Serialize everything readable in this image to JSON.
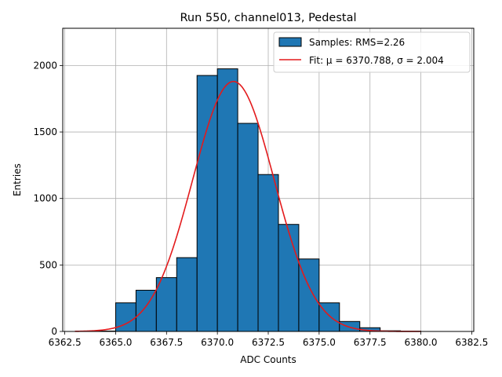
{
  "chart_data": {
    "type": "bar",
    "title": "Run 550, channel013, Pedestal",
    "xlabel": "ADC Counts",
    "ylabel": "Entries",
    "xlim": [
      6362.4,
      6382.6
    ],
    "ylim": [
      0,
      2280
    ],
    "xticks": [
      "6362.5",
      "6365.0",
      "6367.5",
      "6370.0",
      "6372.5",
      "6375.0",
      "6377.5",
      "6380.0",
      "6382.5"
    ],
    "yticks": [
      "0",
      "500",
      "1000",
      "1500",
      "2000"
    ],
    "grid": true,
    "legend_position": "top-right",
    "bins": [
      {
        "x0": 6363,
        "x1": 6364,
        "count": 0
      },
      {
        "x0": 6364,
        "x1": 6365,
        "count": 3
      },
      {
        "x0": 6365,
        "x1": 6366,
        "count": 215
      },
      {
        "x0": 6366,
        "x1": 6367,
        "count": 310
      },
      {
        "x0": 6367,
        "x1": 6368,
        "count": 405
      },
      {
        "x0": 6368,
        "x1": 6369,
        "count": 555
      },
      {
        "x0": 6369,
        "x1": 6370,
        "count": 1925
      },
      {
        "x0": 6370,
        "x1": 6371,
        "count": 1975
      },
      {
        "x0": 6371,
        "x1": 6372,
        "count": 1565
      },
      {
        "x0": 6372,
        "x1": 6373,
        "count": 1180
      },
      {
        "x0": 6373,
        "x1": 6374,
        "count": 805
      },
      {
        "x0": 6374,
        "x1": 6375,
        "count": 545
      },
      {
        "x0": 6375,
        "x1": 6376,
        "count": 215
      },
      {
        "x0": 6376,
        "x1": 6377,
        "count": 75
      },
      {
        "x0": 6377,
        "x1": 6378,
        "count": 28
      },
      {
        "x0": 6378,
        "x1": 6379,
        "count": 5
      },
      {
        "x0": 6379,
        "x1": 6380,
        "count": 2
      },
      {
        "x0": 6380,
        "x1": 6381,
        "count": 0
      },
      {
        "x0": 6381,
        "x1": 6382,
        "count": 0
      }
    ],
    "fit": {
      "mu": 6370.788,
      "sigma": 2.004,
      "amplitude": 1880,
      "x_range": [
        6363,
        6380
      ]
    },
    "series": [
      {
        "name": "Samples: RMS=2.26",
        "kind": "histogram",
        "color": "#1f77b4"
      },
      {
        "name": "Fit: μ = 6370.788, σ = 2.004",
        "kind": "line",
        "color": "#e31a1c"
      }
    ]
  },
  "colors": {
    "bar_fill": "#1f77b4",
    "bar_edge": "#000000",
    "fit_line": "#e31a1c",
    "grid": "#b0b0b0"
  }
}
